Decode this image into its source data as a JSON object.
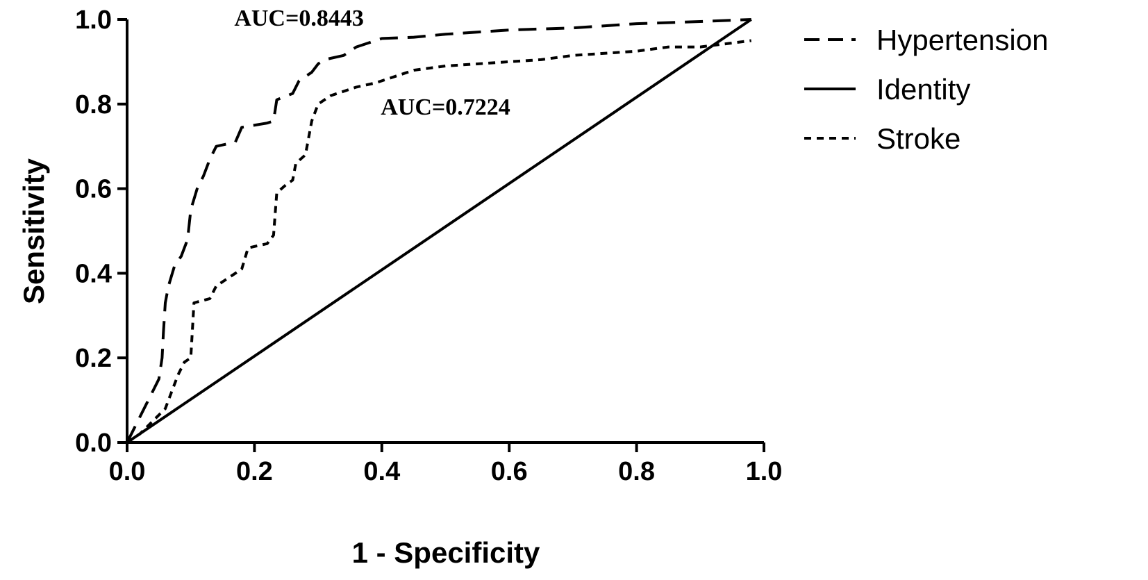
{
  "chart_data": {
    "type": "line",
    "title": "",
    "xlabel": "1 - Specificity",
    "ylabel": "Sensitivity",
    "xlim": [
      0.0,
      1.0
    ],
    "ylim": [
      0.0,
      1.0
    ],
    "x_ticks": [
      "0.0",
      "0.2",
      "0.4",
      "0.6",
      "0.8",
      "1.0"
    ],
    "y_ticks": [
      "0.0",
      "0.2",
      "0.4",
      "0.6",
      "0.8",
      "1.0"
    ],
    "grid": false,
    "legend_position": "right",
    "legend": [
      {
        "label": "Hypertension",
        "style": "dashed"
      },
      {
        "label": "Identity",
        "style": "solid"
      },
      {
        "label": "Stroke",
        "style": "dotted"
      }
    ],
    "annotations": [
      {
        "text": "AUC=0.8443",
        "x": 0.27,
        "y": 0.985
      },
      {
        "text": "AUC=0.7224",
        "x": 0.5,
        "y": 0.775
      }
    ],
    "series": [
      {
        "name": "Hypertension",
        "style": "dashed",
        "points": [
          [
            0.0,
            0.0
          ],
          [
            0.01,
            0.03
          ],
          [
            0.02,
            0.06
          ],
          [
            0.03,
            0.09
          ],
          [
            0.04,
            0.12
          ],
          [
            0.05,
            0.15
          ],
          [
            0.055,
            0.2
          ],
          [
            0.057,
            0.26
          ],
          [
            0.06,
            0.33
          ],
          [
            0.065,
            0.37
          ],
          [
            0.075,
            0.42
          ],
          [
            0.085,
            0.44
          ],
          [
            0.095,
            0.48
          ],
          [
            0.1,
            0.55
          ],
          [
            0.11,
            0.6
          ],
          [
            0.12,
            0.63
          ],
          [
            0.13,
            0.67
          ],
          [
            0.14,
            0.7
          ],
          [
            0.17,
            0.71
          ],
          [
            0.18,
            0.745
          ],
          [
            0.22,
            0.755
          ],
          [
            0.23,
            0.76
          ],
          [
            0.235,
            0.81
          ],
          [
            0.26,
            0.825
          ],
          [
            0.27,
            0.855
          ],
          [
            0.29,
            0.875
          ],
          [
            0.3,
            0.895
          ],
          [
            0.31,
            0.905
          ],
          [
            0.34,
            0.915
          ],
          [
            0.36,
            0.935
          ],
          [
            0.38,
            0.945
          ],
          [
            0.4,
            0.955
          ],
          [
            0.45,
            0.958
          ],
          [
            0.5,
            0.965
          ],
          [
            0.6,
            0.975
          ],
          [
            0.7,
            0.98
          ],
          [
            0.8,
            0.99
          ],
          [
            0.9,
            0.995
          ],
          [
            0.98,
            1.0
          ]
        ]
      },
      {
        "name": "Identity",
        "style": "solid",
        "points": [
          [
            0.0,
            0.0
          ],
          [
            0.98,
            1.0
          ]
        ]
      },
      {
        "name": "Stroke",
        "style": "dotted",
        "points": [
          [
            0.0,
            0.0
          ],
          [
            0.02,
            0.02
          ],
          [
            0.04,
            0.05
          ],
          [
            0.06,
            0.08
          ],
          [
            0.07,
            0.12
          ],
          [
            0.08,
            0.16
          ],
          [
            0.09,
            0.19
          ],
          [
            0.1,
            0.2
          ],
          [
            0.105,
            0.33
          ],
          [
            0.13,
            0.34
          ],
          [
            0.14,
            0.37
          ],
          [
            0.16,
            0.39
          ],
          [
            0.18,
            0.41
          ],
          [
            0.19,
            0.46
          ],
          [
            0.22,
            0.47
          ],
          [
            0.23,
            0.49
          ],
          [
            0.235,
            0.59
          ],
          [
            0.25,
            0.61
          ],
          [
            0.26,
            0.62
          ],
          [
            0.265,
            0.66
          ],
          [
            0.28,
            0.68
          ],
          [
            0.29,
            0.76
          ],
          [
            0.3,
            0.8
          ],
          [
            0.32,
            0.82
          ],
          [
            0.36,
            0.84
          ],
          [
            0.39,
            0.85
          ],
          [
            0.41,
            0.86
          ],
          [
            0.45,
            0.88
          ],
          [
            0.5,
            0.89
          ],
          [
            0.6,
            0.9
          ],
          [
            0.65,
            0.905
          ],
          [
            0.7,
            0.915
          ],
          [
            0.8,
            0.925
          ],
          [
            0.85,
            0.935
          ],
          [
            0.9,
            0.935
          ],
          [
            0.98,
            0.95
          ]
        ]
      }
    ]
  }
}
